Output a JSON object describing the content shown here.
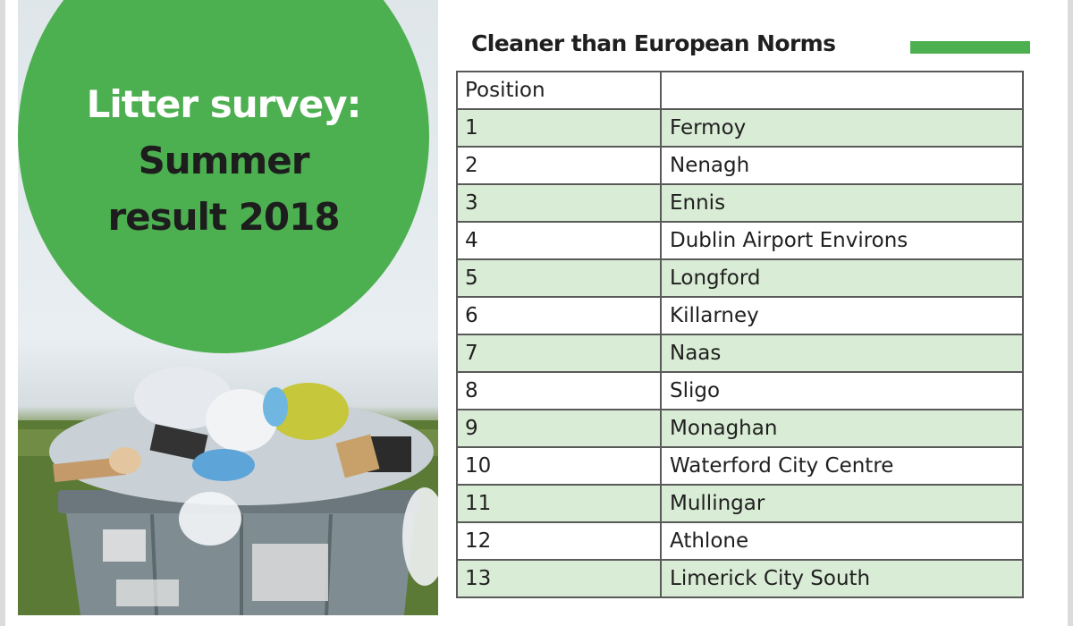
{
  "bubble": {
    "line1": "Litter survey:",
    "line2": "Summer",
    "line3": "result 2018"
  },
  "table": {
    "title": "Cleaner than European Norms",
    "header": [
      "Position",
      ""
    ],
    "rows": [
      {
        "position": "1",
        "town": "Fermoy"
      },
      {
        "position": "2",
        "town": "Nenagh"
      },
      {
        "position": "3",
        "town": "Ennis"
      },
      {
        "position": "4",
        "town": "Dublin Airport Environs"
      },
      {
        "position": "5",
        "town": "Longford"
      },
      {
        "position": "6",
        "town": "Killarney"
      },
      {
        "position": "7",
        "town": "Naas"
      },
      {
        "position": "8",
        "town": "Sligo"
      },
      {
        "position": "9",
        "town": "Monaghan"
      },
      {
        "position": "10",
        "town": "Waterford City Centre"
      },
      {
        "position": "11",
        "town": "Mullingar"
      },
      {
        "position": "12",
        "town": "Athlone"
      },
      {
        "position": "13",
        "town": "Limerick City South"
      }
    ]
  },
  "colors": {
    "accent": "#4caf50",
    "row_alt": "#d9ecd5",
    "text": "#1f1f1f"
  },
  "icons": [
    "litter-skip-illustration"
  ]
}
